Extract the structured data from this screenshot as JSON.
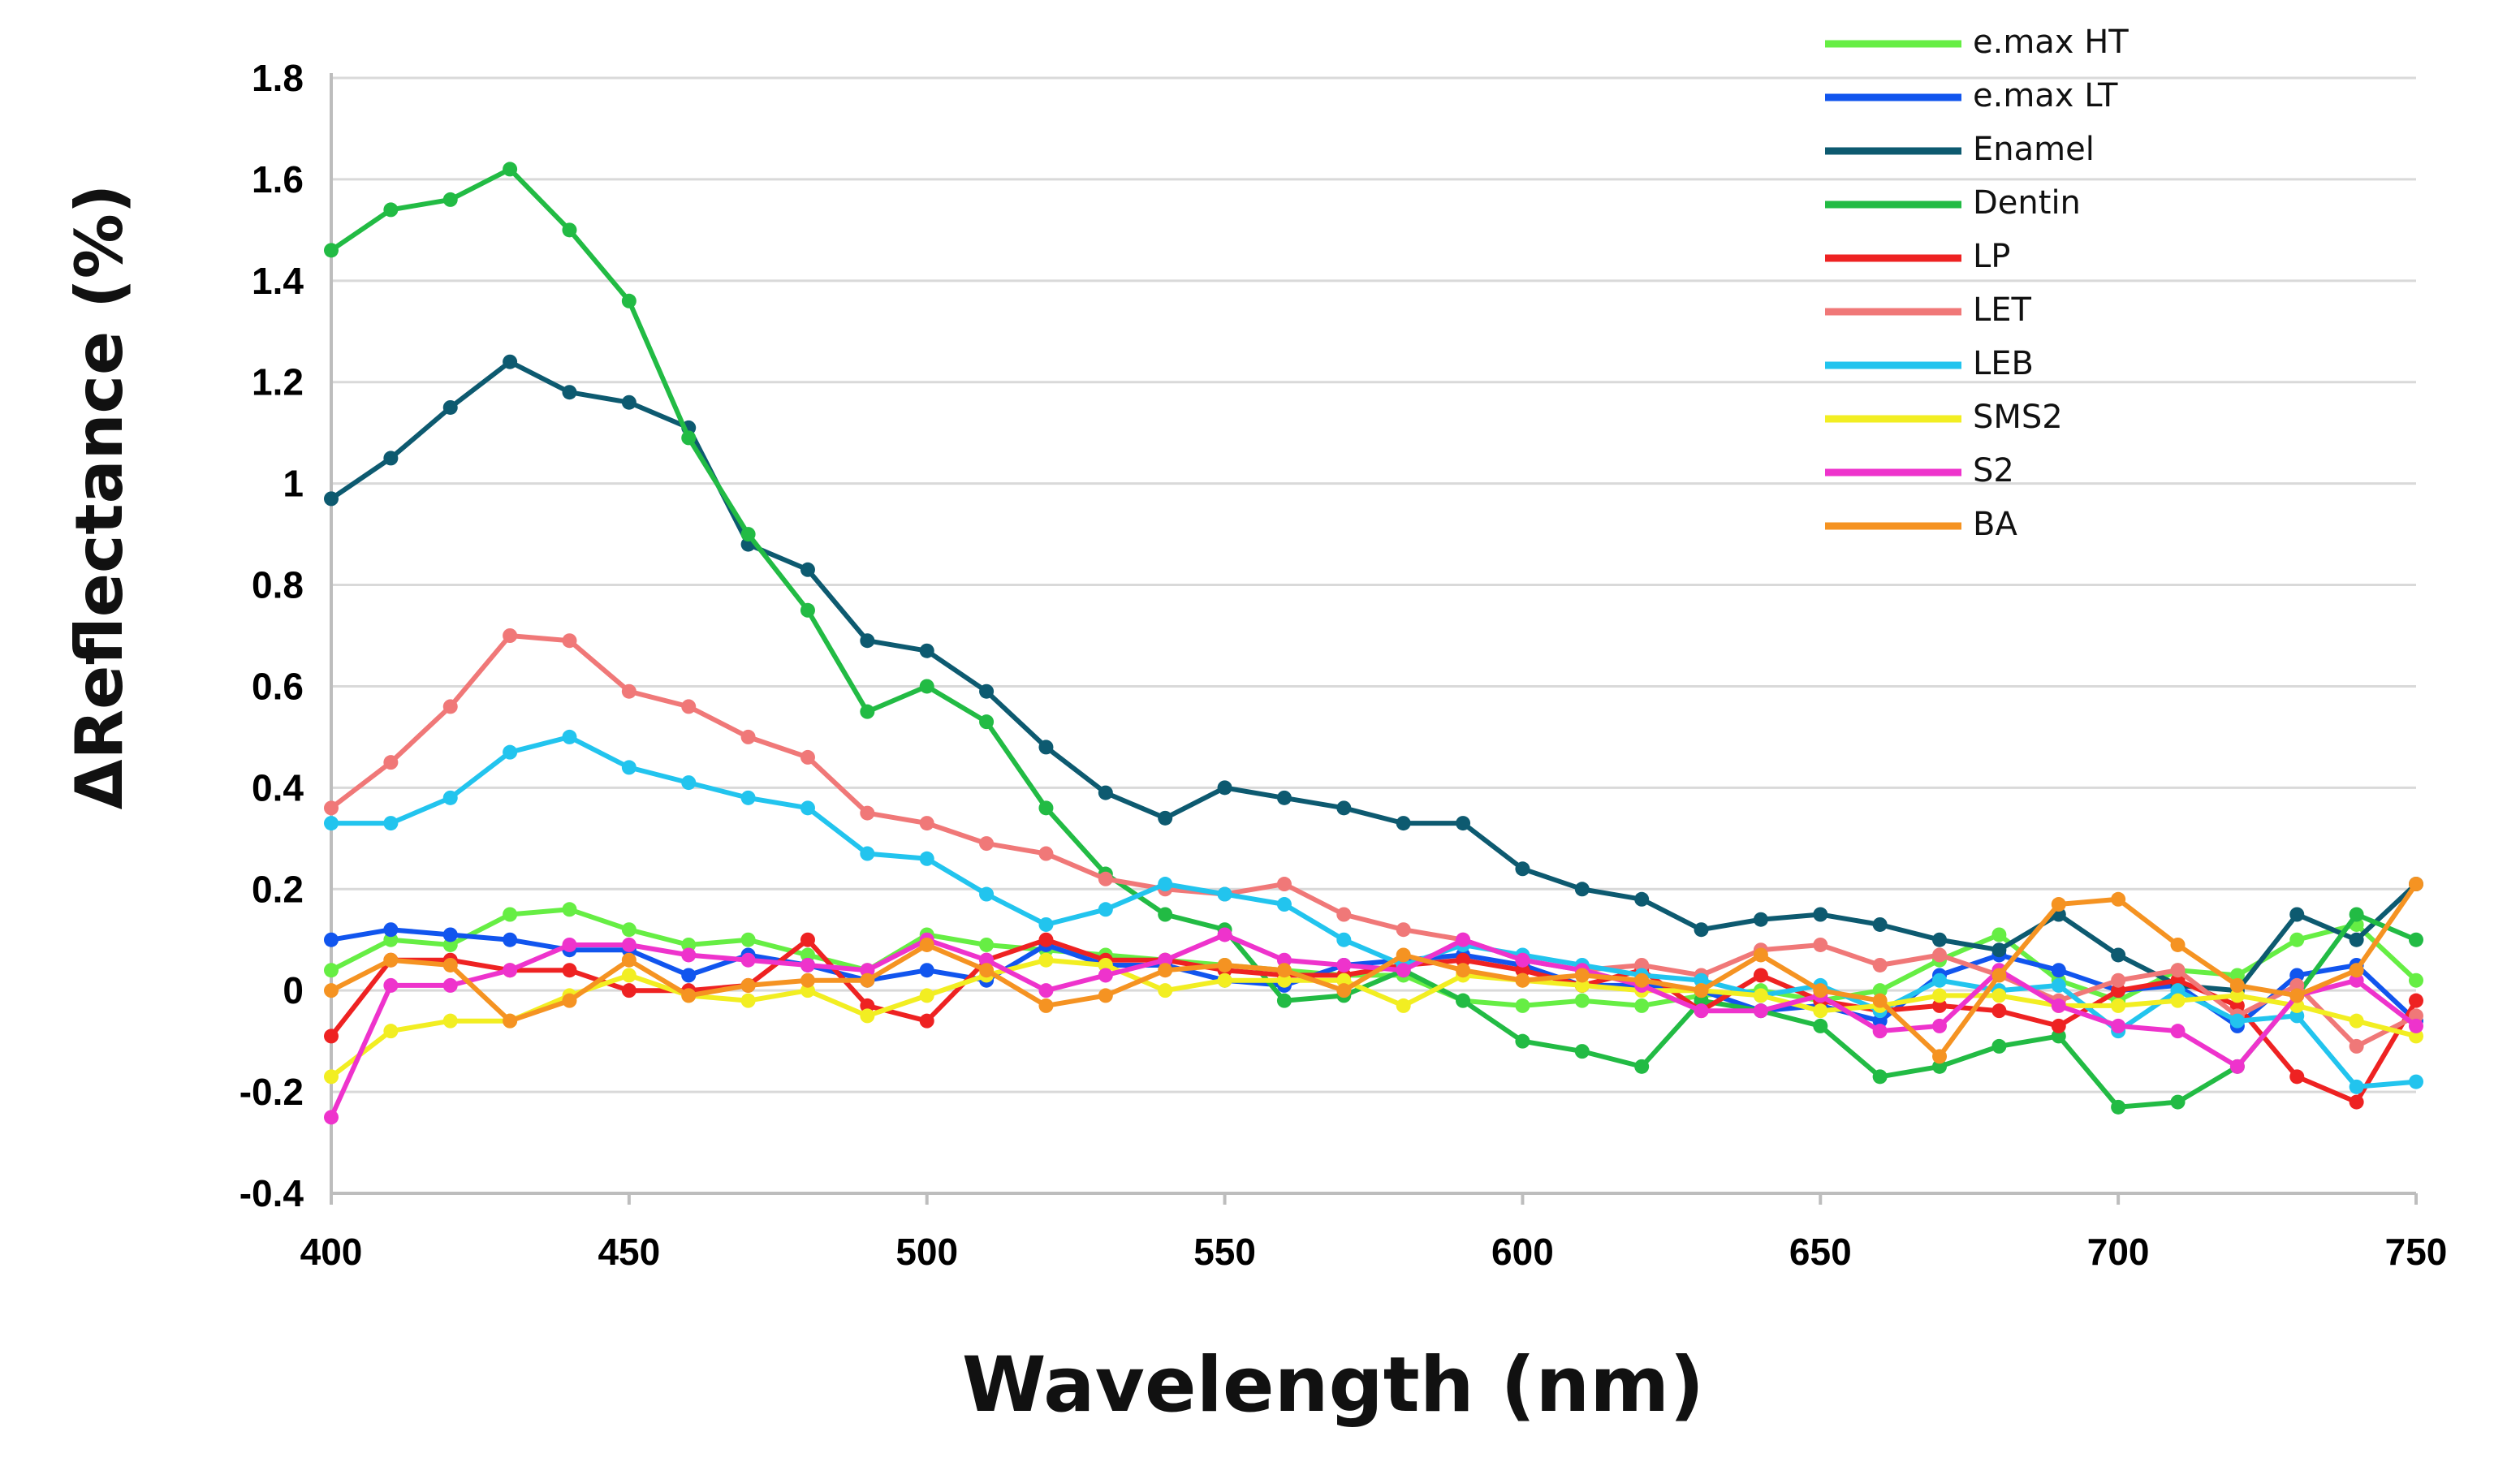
{
  "chart_data": {
    "type": "line",
    "xlabel": "Wavelength (nm)",
    "ylabel": "ΔReflectance (%)",
    "xlim": [
      400,
      750
    ],
    "ylim": [
      -0.4,
      1.8
    ],
    "x_ticks": [
      "400",
      "450",
      "500",
      "550",
      "600",
      "650",
      "700",
      "750"
    ],
    "y_ticks": [
      "-0.4",
      "-0.2",
      "0",
      "0.2",
      "0.4",
      "0.6",
      "0.8",
      "1",
      "1.2",
      "1.4",
      "1.6",
      "1.8"
    ],
    "grid": "horizontal",
    "legend_position": "top-right",
    "x": [
      400,
      410,
      420,
      430,
      440,
      450,
      460,
      470,
      480,
      490,
      500,
      510,
      520,
      530,
      540,
      550,
      560,
      570,
      580,
      590,
      600,
      610,
      620,
      630,
      640,
      650,
      660,
      670,
      680,
      690,
      700,
      710,
      720,
      730,
      740,
      750
    ],
    "series": [
      {
        "name": "e.max HT",
        "color": "#66ee44",
        "values": [
          0.04,
          0.1,
          0.09,
          0.15,
          0.16,
          0.12,
          0.09,
          0.1,
          0.07,
          0.04,
          0.11,
          0.09,
          0.08,
          0.07,
          0.06,
          0.05,
          0.04,
          0.03,
          0.03,
          -0.02,
          -0.03,
          -0.02,
          -0.03,
          -0.01,
          0.0,
          -0.02,
          0.0,
          0.06,
          0.11,
          0.02,
          -0.02,
          0.04,
          0.03,
          0.1,
          0.13,
          0.02
        ]
      },
      {
        "name": "e.max LT",
        "color": "#1155ee",
        "values": [
          0.1,
          0.12,
          0.11,
          0.1,
          0.08,
          0.08,
          0.03,
          0.07,
          0.05,
          0.02,
          0.04,
          0.02,
          0.09,
          0.05,
          0.05,
          0.02,
          0.01,
          0.05,
          0.06,
          0.07,
          0.05,
          0.01,
          0.01,
          0.0,
          -0.04,
          -0.03,
          -0.06,
          0.03,
          0.07,
          0.04,
          0.0,
          0.01,
          -0.07,
          0.03,
          0.05,
          -0.06
        ]
      },
      {
        "name": "Enamel",
        "color": "#0d5a70",
        "values": [
          0.97,
          1.05,
          1.15,
          1.24,
          1.18,
          1.16,
          1.11,
          0.88,
          0.83,
          0.69,
          0.67,
          0.59,
          0.48,
          0.39,
          0.34,
          0.4,
          0.38,
          0.36,
          0.33,
          0.33,
          0.24,
          0.2,
          0.18,
          0.12,
          0.14,
          0.15,
          0.13,
          0.1,
          0.08,
          0.15,
          0.07,
          0.01,
          0.0,
          0.15,
          0.1,
          0.21
        ]
      },
      {
        "name": "Dentin",
        "color": "#22bb44",
        "values": [
          1.46,
          1.54,
          1.56,
          1.62,
          1.5,
          1.36,
          1.09,
          0.9,
          0.75,
          0.55,
          0.6,
          0.53,
          0.36,
          0.23,
          0.15,
          0.12,
          -0.02,
          -0.01,
          0.04,
          -0.02,
          -0.1,
          -0.12,
          -0.15,
          -0.02,
          -0.04,
          -0.07,
          -0.17,
          -0.15,
          -0.11,
          -0.09,
          -0.23,
          -0.22,
          -0.15,
          -0.01,
          0.15,
          0.1
        ]
      },
      {
        "name": "LP",
        "color": "#ee2222",
        "values": [
          -0.09,
          0.06,
          0.06,
          0.04,
          0.04,
          0.0,
          0.0,
          0.01,
          0.1,
          -0.03,
          -0.06,
          0.06,
          0.1,
          0.06,
          0.06,
          0.04,
          0.03,
          0.03,
          0.05,
          0.06,
          0.04,
          0.01,
          0.04,
          -0.04,
          0.03,
          -0.02,
          -0.04,
          -0.03,
          -0.04,
          -0.07,
          0.0,
          0.02,
          -0.03,
          -0.17,
          -0.22,
          -0.02
        ]
      },
      {
        "name": "LET",
        "color": "#f07878",
        "values": [
          0.36,
          0.45,
          0.56,
          0.7,
          0.69,
          0.59,
          0.56,
          0.5,
          0.46,
          0.35,
          0.33,
          0.29,
          0.27,
          0.22,
          0.2,
          0.19,
          0.21,
          0.15,
          0.12,
          0.1,
          0.06,
          0.04,
          0.05,
          0.03,
          0.08,
          0.09,
          0.05,
          0.07,
          0.03,
          -0.02,
          0.02,
          0.04,
          -0.05,
          0.01,
          -0.11,
          -0.05
        ]
      },
      {
        "name": "LEB",
        "color": "#22c4ee",
        "values": [
          0.33,
          0.33,
          0.38,
          0.47,
          0.5,
          0.44,
          0.41,
          0.38,
          0.36,
          0.27,
          0.26,
          0.19,
          0.13,
          0.16,
          0.21,
          0.19,
          0.17,
          0.1,
          0.05,
          0.09,
          0.07,
          0.05,
          0.03,
          0.02,
          -0.01,
          0.01,
          -0.04,
          0.02,
          0.0,
          0.01,
          -0.08,
          0.0,
          -0.06,
          -0.05,
          -0.19,
          -0.18
        ]
      },
      {
        "name": "SMS2",
        "color": "#f2ee22",
        "values": [
          -0.17,
          -0.08,
          -0.06,
          -0.06,
          -0.01,
          0.03,
          -0.01,
          -0.02,
          0.0,
          -0.05,
          -0.01,
          0.03,
          0.06,
          0.05,
          0.0,
          0.02,
          0.02,
          0.02,
          -0.03,
          0.03,
          0.02,
          0.01,
          0.0,
          0.0,
          -0.01,
          -0.04,
          -0.03,
          -0.01,
          -0.01,
          -0.03,
          -0.03,
          -0.02,
          -0.01,
          -0.03,
          -0.06,
          -0.09
        ]
      },
      {
        "name": "S2",
        "color": "#ee33cc",
        "values": [
          -0.25,
          0.01,
          0.01,
          0.04,
          0.09,
          0.09,
          0.07,
          0.06,
          0.05,
          0.04,
          0.1,
          0.06,
          0.0,
          0.03,
          0.06,
          0.11,
          0.06,
          0.05,
          0.04,
          0.1,
          0.06,
          0.04,
          0.01,
          -0.04,
          -0.04,
          -0.01,
          -0.08,
          -0.07,
          0.04,
          -0.03,
          -0.07,
          -0.08,
          -0.15,
          -0.01,
          0.02,
          -0.07
        ]
      },
      {
        "name": "BA",
        "color": "#f59322",
        "values": [
          0.0,
          0.06,
          0.05,
          -0.06,
          -0.02,
          0.06,
          -0.01,
          0.01,
          0.02,
          0.02,
          0.09,
          0.04,
          -0.03,
          -0.01,
          0.04,
          0.05,
          0.04,
          0.0,
          0.07,
          0.04,
          0.02,
          0.03,
          0.02,
          0.0,
          0.07,
          0.0,
          -0.02,
          -0.13,
          0.03,
          0.17,
          0.18,
          0.09,
          0.01,
          -0.01,
          0.04,
          0.21
        ]
      }
    ]
  }
}
